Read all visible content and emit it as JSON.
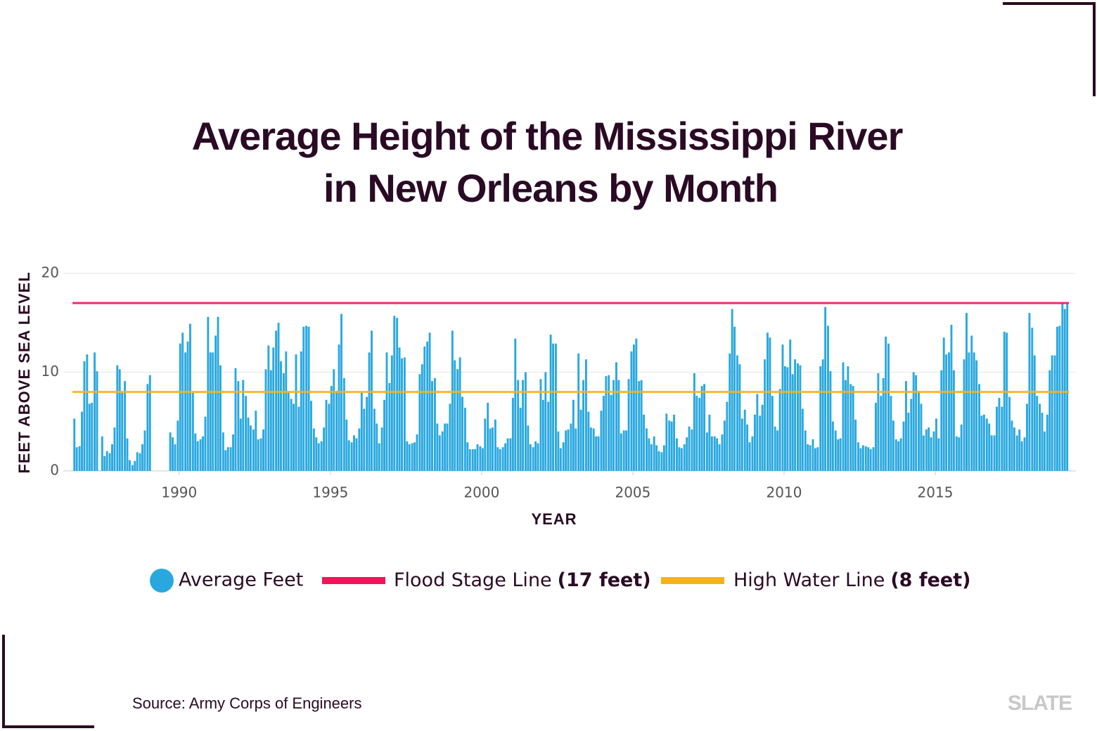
{
  "chart_data": {
    "type": "bar",
    "title": [
      "Average Height of the Mississippi River",
      "in New Orleans by Month"
    ],
    "xlabel": "YEAR",
    "ylabel": "FEET ABOVE SEA LEVEL",
    "xlim": [
      1986.4,
      2019.65
    ],
    "ylim": [
      0,
      20
    ],
    "xticks": [
      1990,
      1995,
      2000,
      2005,
      2010,
      2015
    ],
    "yticks": [
      0,
      10,
      20
    ],
    "grid": true,
    "x": [
      1986.5,
      1986.58,
      1986.67,
      1986.75,
      1986.83,
      1986.92,
      1987,
      1987.08,
      1987.17,
      1987.25,
      1987.33,
      1987.42,
      1987.5,
      1987.58,
      1987.67,
      1987.75,
      1987.83,
      1987.92,
      1988,
      1988.08,
      1988.17,
      1988.25,
      1988.33,
      1988.42,
      1988.5,
      1988.58,
      1988.67,
      1988.75,
      1988.83,
      1988.92,
      1989,
      1989.08,
      1989.17,
      1989.25,
      1989.33,
      1989.42,
      1989.5,
      1989.58,
      1989.67,
      1989.75,
      1989.83,
      1989.92,
      1990,
      1990.08,
      1990.17,
      1990.25,
      1990.33,
      1990.42,
      1990.5,
      1990.58,
      1990.67,
      1990.75,
      1990.83,
      1990.92,
      1991,
      1991.08,
      1991.17,
      1991.25,
      1991.33,
      1991.42,
      1991.5,
      1991.58,
      1991.67,
      1991.75,
      1991.83,
      1991.92,
      1992,
      1992.08,
      1992.17,
      1992.25,
      1992.33,
      1992.42,
      1992.5,
      1992.58,
      1992.67,
      1992.75,
      1992.83,
      1992.92,
      1993,
      1993.08,
      1993.17,
      1993.25,
      1993.33,
      1993.42,
      1993.5,
      1993.58,
      1993.67,
      1993.75,
      1993.83,
      1993.92,
      1994,
      1994.08,
      1994.17,
      1994.25,
      1994.33,
      1994.42,
      1994.5,
      1994.58,
      1994.67,
      1994.75,
      1994.83,
      1994.92,
      1995,
      1995.08,
      1995.17,
      1995.25,
      1995.33,
      1995.42,
      1995.5,
      1995.58,
      1995.67,
      1995.75,
      1995.83,
      1995.92,
      1996,
      1996.08,
      1996.17,
      1996.25,
      1996.33,
      1996.42,
      1996.5,
      1996.58,
      1996.67,
      1996.75,
      1996.83,
      1996.92,
      1997,
      1997.08,
      1997.17,
      1997.25,
      1997.33,
      1997.42,
      1997.5,
      1997.58,
      1997.67,
      1997.75,
      1997.83,
      1997.92,
      1998,
      1998.08,
      1998.17,
      1998.25,
      1998.33,
      1998.42,
      1998.5,
      1998.58,
      1998.67,
      1998.75,
      1998.83,
      1998.92,
      1999,
      1999.08,
      1999.17,
      1999.25,
      1999.33,
      1999.42,
      1999.5,
      1999.58,
      1999.67,
      1999.75,
      1999.83,
      1999.92,
      2000,
      2000.08,
      2000.17,
      2000.25,
      2000.33,
      2000.42,
      2000.5,
      2000.58,
      2000.67,
      2000.75,
      2000.83,
      2000.92,
      2001,
      2001.08,
      2001.17,
      2001.25,
      2001.33,
      2001.42,
      2001.5,
      2001.58,
      2001.67,
      2001.75,
      2001.83,
      2001.92,
      2002,
      2002.08,
      2002.17,
      2002.25,
      2002.33,
      2002.42,
      2002.5,
      2002.58,
      2002.67,
      2002.75,
      2002.83,
      2002.92,
      2003,
      2003.08,
      2003.17,
      2003.25,
      2003.33,
      2003.42,
      2003.5,
      2003.58,
      2003.67,
      2003.75,
      2003.83,
      2003.92,
      2004,
      2004.08,
      2004.17,
      2004.25,
      2004.33,
      2004.42,
      2004.5,
      2004.58,
      2004.67,
      2004.75,
      2004.83,
      2004.92,
      2005,
      2005.08,
      2005.17,
      2005.25,
      2005.33,
      2005.42,
      2005.5,
      2005.58,
      2005.67,
      2005.75,
      2005.83,
      2005.92,
      2006,
      2006.08,
      2006.17,
      2006.25,
      2006.33,
      2006.42,
      2006.5,
      2006.58,
      2006.67,
      2006.75,
      2006.83,
      2006.92,
      2007,
      2007.08,
      2007.17,
      2007.25,
      2007.33,
      2007.42,
      2007.5,
      2007.58,
      2007.67,
      2007.75,
      2007.83,
      2007.92,
      2008,
      2008.08,
      2008.17,
      2008.25,
      2008.33,
      2008.42,
      2008.5,
      2008.58,
      2008.67,
      2008.75,
      2008.83,
      2008.92,
      2009,
      2009.08,
      2009.17,
      2009.25,
      2009.33,
      2009.42,
      2009.5,
      2009.58,
      2009.67,
      2009.75,
      2009.83,
      2009.92,
      2010,
      2010.08,
      2010.17,
      2010.25,
      2010.33,
      2010.42,
      2010.5,
      2010.58,
      2010.67,
      2010.75,
      2010.83,
      2010.92,
      2011,
      2011.08,
      2011.17,
      2011.25,
      2011.33,
      2011.42,
      2011.5,
      2011.58,
      2011.67,
      2011.75,
      2011.83,
      2011.92,
      2012,
      2012.08,
      2012.17,
      2012.25,
      2012.33,
      2012.42,
      2012.5,
      2012.58,
      2012.67,
      2012.75,
      2012.83,
      2012.92,
      2013,
      2013.08,
      2013.17,
      2013.25,
      2013.33,
      2013.42,
      2013.5,
      2013.58,
      2013.67,
      2013.75,
      2013.83,
      2013.92,
      2014,
      2014.08,
      2014.17,
      2014.25,
      2014.33,
      2014.42,
      2014.5,
      2014.58,
      2014.67,
      2014.75,
      2014.83,
      2014.92,
      2015,
      2015.08,
      2015.17,
      2015.25,
      2015.33,
      2015.42,
      2015.5,
      2015.58,
      2015.67,
      2015.75,
      2015.83,
      2015.92,
      2016,
      2016.08,
      2016.17,
      2016.25,
      2016.33,
      2016.42,
      2016.5,
      2016.58,
      2016.67,
      2016.75,
      2016.83,
      2016.92,
      2017,
      2017.08,
      2017.17,
      2017.25,
      2017.33,
      2017.42,
      2017.5,
      2017.58,
      2017.67,
      2017.75,
      2017.83,
      2017.92,
      2018,
      2018.08,
      2018.17,
      2018.25,
      2018.33,
      2018.42,
      2018.5,
      2018.58,
      2018.67,
      2018.75,
      2018.83,
      2018.92,
      2019,
      2019.08,
      2019.17,
      2019.25,
      2019.33
    ],
    "series": [
      {
        "name": "Average Feet",
        "color": "#29a8e0",
        "values": [
          5.3,
          2.4,
          2.5,
          6,
          11.1,
          11.8,
          6.8,
          6.9,
          12,
          10.1,
          null,
          3.5,
          1.5,
          2,
          1.8,
          2.7,
          4.4,
          10.7,
          10.3,
          8,
          9.1,
          3.3,
          1.1,
          0.6,
          1,
          1.9,
          1.8,
          2.7,
          4.1,
          8.8,
          9.7,
          null,
          null,
          null,
          null,
          null,
          null,
          null,
          3.9,
          3.4,
          2.7,
          5.1,
          12.9,
          14,
          12,
          13.1,
          14.9,
          7.9,
          3.8,
          3,
          3.2,
          3.5,
          5.5,
          15.6,
          12,
          12,
          13.7,
          15.6,
          10.7,
          3.9,
          2.1,
          2.4,
          2.4,
          3.7,
          10.4,
          9.1,
          5.3,
          9.2,
          7.6,
          5.4,
          4.6,
          4.2,
          6.1,
          3.2,
          3.3,
          4.2,
          10.3,
          12.7,
          10.2,
          12.5,
          14.2,
          15,
          11.1,
          9.9,
          12.1,
          8,
          7.3,
          6.8,
          11.8,
          6.5,
          12.1,
          14.6,
          14.7,
          14.6,
          7.1,
          4.3,
          3.4,
          2.8,
          3,
          4.4,
          7.2,
          6.8,
          8.6,
          10.3,
          8.1,
          12.8,
          15.9,
          9.4,
          5.2,
          3.1,
          2.9,
          3.6,
          3.3,
          4.3,
          7.9,
          6.3,
          7.5,
          12,
          14.2,
          6.3,
          4.8,
          2.8,
          4.4,
          7.2,
          12,
          8.9,
          11.7,
          15.7,
          15.5,
          12.5,
          11.4,
          11.5,
          3,
          2.7,
          2.8,
          2.9,
          3.7,
          9.8,
          10.8,
          12.6,
          13.1,
          14,
          9.1,
          9.4,
          4.8,
          3.6,
          4,
          4.8,
          4.8,
          6.8,
          14.2,
          11.2,
          10.3,
          11.5,
          7.5,
          6.4,
          2.9,
          2.2,
          2.2,
          2.2,
          2.7,
          2.5,
          2.3,
          5.3,
          6.9,
          4.3,
          4.4,
          5.2,
          2.4,
          2.2,
          2.4,
          2.8,
          3.3,
          3.3,
          7.4,
          13.4,
          9.2,
          6.4,
          9.2,
          10,
          4.6,
          2.7,
          2.4,
          3,
          2.8,
          9.3,
          7.2,
          10,
          7,
          13.8,
          12.9,
          12.9,
          4,
          2.3,
          2.9,
          4.1,
          4.2,
          4.8,
          7.2,
          4.3,
          11.9,
          6.2,
          9.2,
          11.3,
          6,
          4.4,
          4.3,
          3.5,
          3.5,
          6.1,
          7.6,
          9.6,
          9.7,
          7.7,
          9.2,
          11,
          9.2,
          3.8,
          4.1,
          4.1,
          9.3,
          12.1,
          12.8,
          13.4,
          9.1,
          9.2,
          5.7,
          4.3,
          3.3,
          2.7,
          3.5,
          2.6,
          2,
          1.9,
          2.6,
          5.8,
          5.1,
          5,
          5.7,
          3.3,
          2.4,
          2.3,
          2.7,
          3.4,
          4.5,
          4.2,
          9.9,
          7.6,
          7.4,
          8.6,
          8.8,
          3.9,
          5.7,
          3.5,
          3.5,
          3.3,
          2.7,
          3.7,
          5.1,
          7,
          11.9,
          16.4,
          14.6,
          11.7,
          10.8,
          5.3,
          6.2,
          4.7,
          2.9,
          3.5,
          5.7,
          7.8,
          5.6,
          6.7,
          11.3,
          14,
          13.5,
          7.6,
          4.5,
          4.1,
          8.3,
          12.8,
          10.6,
          10.5,
          13.3,
          9.8,
          11.3,
          10.9,
          10.7,
          6.3,
          4.1,
          2.7,
          2.6,
          3.2,
          2.3,
          2.4,
          10.6,
          11.3,
          16.6,
          14.7,
          10.1,
          5,
          4.1,
          3.2,
          3.3,
          11,
          9.2,
          10.6,
          8.8,
          8.6,
          5.2,
          2.9,
          2.3,
          2.6,
          2.5,
          2.4,
          2.2,
          2.4,
          6.9,
          9.9,
          7.6,
          9.4,
          13.6,
          12.9,
          7.6,
          5.1,
          3.2,
          3,
          3.3,
          5,
          9.1,
          5.9,
          7.3,
          10,
          9.7,
          8.1,
          6.8,
          3.6,
          4.2,
          4.4,
          3.4,
          4,
          5.3,
          3.3,
          10.2,
          13.5,
          11.8,
          12,
          14.8,
          10.2,
          3.5,
          3.4,
          4.7,
          11.3,
          16,
          12,
          13.7,
          12,
          11.2,
          8.8,
          5.6,
          5.7,
          5.3,
          4.8,
          3.6,
          3.6,
          6.5,
          7.4,
          6.5,
          14.1,
          14,
          7.5,
          5.1,
          4.4,
          3.6,
          4.2,
          3,
          3.4,
          6.8,
          16,
          14.5,
          11.7,
          7.6,
          6.8,
          5.9,
          4,
          5.7,
          10.2,
          11.7,
          11.7,
          14.6,
          14.7,
          17,
          16.4,
          16.9
        ]
      }
    ],
    "reference_lines": [
      {
        "name": "Flood Stage Line",
        "value_label": "(17 feet)",
        "value": 17,
        "color": "#f0145a"
      },
      {
        "name": "High Water Line",
        "value_label": "(8 feet)",
        "value": 8,
        "color": "#f5b21d"
      }
    ],
    "source": "Source: Army Corps of Engineers",
    "logo": "SLATE"
  }
}
